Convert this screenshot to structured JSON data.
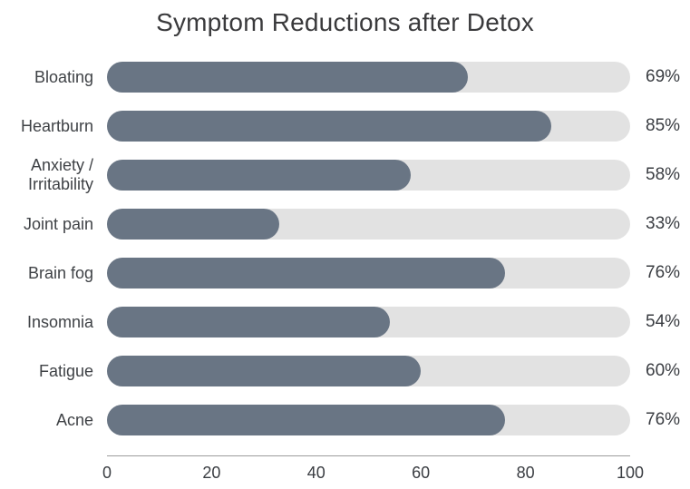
{
  "chart_data": {
    "type": "bar",
    "orientation": "horizontal",
    "title": "Symptom Reductions after Detox",
    "categories": [
      "Bloating",
      "Heartburn",
      "Anxiety / Irritability",
      "Joint pain",
      "Brain fog",
      "Insomnia",
      "Fatigue",
      "Acne"
    ],
    "values": [
      69,
      85,
      58,
      33,
      76,
      54,
      60,
      76
    ],
    "value_labels": [
      "69%",
      "85%",
      "58%",
      "33%",
      "76%",
      "54%",
      "60%",
      "76%"
    ],
    "xlabel": "",
    "ylabel": "",
    "xlim": [
      0,
      100
    ],
    "x_ticks": [
      0,
      20,
      40,
      60,
      80,
      100
    ],
    "grid": false,
    "legend": "none",
    "bar_color": "#697584",
    "track_color": "#e2e2e2",
    "title_color": "#3a3a3c",
    "label_color": "#3f4246",
    "axis_line_color": "#9b9b9b"
  }
}
